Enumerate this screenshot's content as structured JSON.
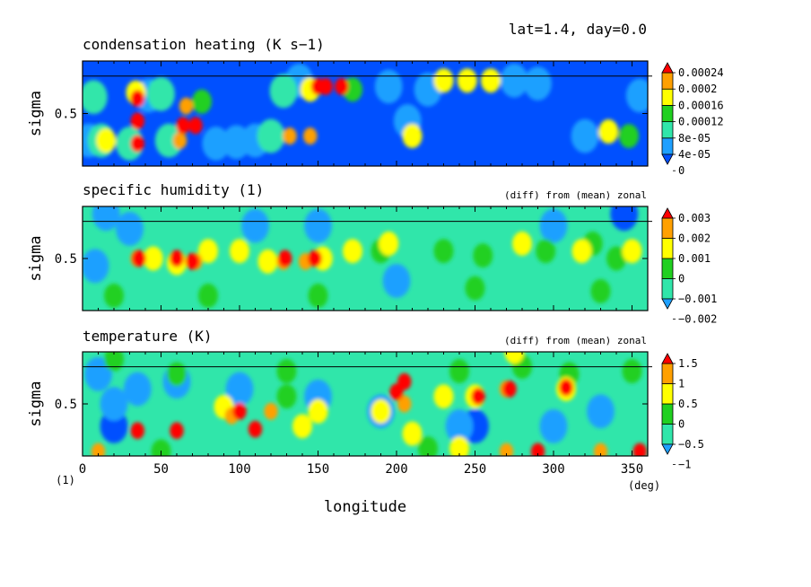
{
  "header": {
    "info": "lat=1.4, day=0.0"
  },
  "colors": {
    "levels": [
      "#0050ff",
      "#1ea0ff",
      "#30e6aa",
      "#20d020",
      "#ffff00",
      "#ffa000",
      "#ff0000"
    ],
    "axis": "#000000"
  },
  "chart_data": [
    {
      "type": "heatmap",
      "title": "condensation heating (K s−1)",
      "annotation": "",
      "xlabel": "",
      "ylabel": "sigma",
      "xlim": [
        0,
        360
      ],
      "ylim": [
        0.85,
        0.15
      ],
      "yticks": [
        "0.5"
      ],
      "legend": {
        "placement": "right",
        "labels": [
          "0.00024",
          "0.0002",
          "0.00016",
          "0.00012",
          "8e-05",
          "4e-05",
          "0"
        ]
      },
      "reference_sigma": 0.75,
      "background_level": 0,
      "features": [
        {
          "lon": 4,
          "sigma": 0.32,
          "level": 1
        },
        {
          "lon": 12,
          "sigma": 0.32,
          "level": 2
        },
        {
          "lon": 15,
          "sigma": 0.32,
          "level": 4
        },
        {
          "lon": 7,
          "sigma": 0.61,
          "level": 2
        },
        {
          "lon": 30,
          "sigma": 0.3,
          "level": 2
        },
        {
          "lon": 35,
          "sigma": 0.3,
          "level": 6
        },
        {
          "lon": 35,
          "sigma": 0.45,
          "level": 6
        },
        {
          "lon": 35,
          "sigma": 0.6,
          "level": 6
        },
        {
          "lon": 34,
          "sigma": 0.64,
          "level": 4
        },
        {
          "lon": 42,
          "sigma": 0.62,
          "level": 1
        },
        {
          "lon": 50,
          "sigma": 0.63,
          "level": 2
        },
        {
          "lon": 55,
          "sigma": 0.32,
          "level": 2
        },
        {
          "lon": 62,
          "sigma": 0.32,
          "level": 5
        },
        {
          "lon": 64,
          "sigma": 0.42,
          "level": 6
        },
        {
          "lon": 72,
          "sigma": 0.42,
          "level": 6
        },
        {
          "lon": 66,
          "sigma": 0.55,
          "level": 5
        },
        {
          "lon": 76,
          "sigma": 0.58,
          "level": 3
        },
        {
          "lon": 85,
          "sigma": 0.3,
          "level": 1
        },
        {
          "lon": 98,
          "sigma": 0.31,
          "level": 1
        },
        {
          "lon": 110,
          "sigma": 0.32,
          "level": 1
        },
        {
          "lon": 120,
          "sigma": 0.35,
          "level": 2
        },
        {
          "lon": 132,
          "sigma": 0.35,
          "level": 5
        },
        {
          "lon": 145,
          "sigma": 0.35,
          "level": 5
        },
        {
          "lon": 128,
          "sigma": 0.65,
          "level": 2
        },
        {
          "lon": 150,
          "sigma": 0.68,
          "level": 6
        },
        {
          "lon": 155,
          "sigma": 0.68,
          "level": 6
        },
        {
          "lon": 145,
          "sigma": 0.66,
          "level": 4
        },
        {
          "lon": 165,
          "sigma": 0.68,
          "level": 6
        },
        {
          "lon": 172,
          "sigma": 0.66,
          "level": 3
        },
        {
          "lon": 138,
          "sigma": 0.72,
          "level": 1
        },
        {
          "lon": 195,
          "sigma": 0.68,
          "level": 1
        },
        {
          "lon": 210,
          "sigma": 0.35,
          "level": 4
        },
        {
          "lon": 207,
          "sigma": 0.45,
          "level": 1
        },
        {
          "lon": 220,
          "sigma": 0.66,
          "level": 1
        },
        {
          "lon": 230,
          "sigma": 0.72,
          "level": 4
        },
        {
          "lon": 245,
          "sigma": 0.72,
          "level": 4
        },
        {
          "lon": 260,
          "sigma": 0.72,
          "level": 4
        },
        {
          "lon": 275,
          "sigma": 0.72,
          "level": 1
        },
        {
          "lon": 290,
          "sigma": 0.7,
          "level": 1
        },
        {
          "lon": 320,
          "sigma": 0.35,
          "level": 1
        },
        {
          "lon": 335,
          "sigma": 0.38,
          "level": 4
        },
        {
          "lon": 348,
          "sigma": 0.35,
          "level": 3
        },
        {
          "lon": 355,
          "sigma": 0.62,
          "level": 1
        }
      ]
    },
    {
      "type": "heatmap",
      "title": "specific humidity (1)",
      "annotation": "(diff) from (mean) zonal",
      "xlabel": "",
      "ylabel": "sigma",
      "xlim": [
        0,
        360
      ],
      "ylim": [
        0.85,
        0.15
      ],
      "yticks": [
        "0.5"
      ],
      "legend": {
        "placement": "right",
        "labels": [
          "0.003",
          "0.002",
          "0.001",
          "0",
          "−0.001",
          "−0.002"
        ]
      },
      "reference_sigma": 0.75,
      "background_level": 2,
      "features": [
        {
          "lon": 20,
          "sigma": 0.25,
          "level": 3
        },
        {
          "lon": 80,
          "sigma": 0.25,
          "level": 3
        },
        {
          "lon": 150,
          "sigma": 0.25,
          "level": 3
        },
        {
          "lon": 250,
          "sigma": 0.3,
          "level": 3
        },
        {
          "lon": 330,
          "sigma": 0.28,
          "level": 3
        },
        {
          "lon": 8,
          "sigma": 0.45,
          "level": 1
        },
        {
          "lon": 30,
          "sigma": 0.7,
          "level": 1
        },
        {
          "lon": 15,
          "sigma": 0.8,
          "level": 1
        },
        {
          "lon": 110,
          "sigma": 0.72,
          "level": 1
        },
        {
          "lon": 150,
          "sigma": 0.72,
          "level": 1
        },
        {
          "lon": 300,
          "sigma": 0.72,
          "level": 1
        },
        {
          "lon": 345,
          "sigma": 0.8,
          "level": 0
        },
        {
          "lon": 200,
          "sigma": 0.35,
          "level": 1
        },
        {
          "lon": 230,
          "sigma": 0.55,
          "level": 3
        },
        {
          "lon": 45,
          "sigma": 0.5,
          "level": 4
        },
        {
          "lon": 35,
          "sigma": 0.5,
          "level": 5
        },
        {
          "lon": 60,
          "sigma": 0.47,
          "level": 4
        },
        {
          "lon": 72,
          "sigma": 0.48,
          "level": 5
        },
        {
          "lon": 80,
          "sigma": 0.55,
          "level": 4
        },
        {
          "lon": 100,
          "sigma": 0.55,
          "level": 4
        },
        {
          "lon": 118,
          "sigma": 0.48,
          "level": 4
        },
        {
          "lon": 128,
          "sigma": 0.48,
          "level": 5
        },
        {
          "lon": 142,
          "sigma": 0.48,
          "level": 5
        },
        {
          "lon": 153,
          "sigma": 0.5,
          "level": 4
        },
        {
          "lon": 172,
          "sigma": 0.55,
          "level": 4
        },
        {
          "lon": 195,
          "sigma": 0.6,
          "level": 4
        },
        {
          "lon": 190,
          "sigma": 0.55,
          "level": 3
        },
        {
          "lon": 255,
          "sigma": 0.52,
          "level": 3
        },
        {
          "lon": 280,
          "sigma": 0.6,
          "level": 4
        },
        {
          "lon": 295,
          "sigma": 0.55,
          "level": 3
        },
        {
          "lon": 318,
          "sigma": 0.55,
          "level": 4
        },
        {
          "lon": 325,
          "sigma": 0.6,
          "level": 3
        },
        {
          "lon": 340,
          "sigma": 0.5,
          "level": 3
        },
        {
          "lon": 350,
          "sigma": 0.55,
          "level": 4
        },
        {
          "lon": 36,
          "sigma": 0.5,
          "level": 6
        },
        {
          "lon": 60,
          "sigma": 0.5,
          "level": 6
        },
        {
          "lon": 70,
          "sigma": 0.48,
          "level": 6
        },
        {
          "lon": 129,
          "sigma": 0.5,
          "level": 6
        },
        {
          "lon": 148,
          "sigma": 0.5,
          "level": 6
        }
      ]
    },
    {
      "type": "heatmap",
      "title": "temperature (K)",
      "annotation": "(diff) from (mean) zonal",
      "xlabel": "longitude",
      "ylabel": "sigma",
      "xlim": [
        0,
        360
      ],
      "ylim": [
        0.85,
        0.15
      ],
      "yticks": [
        "0.5"
      ],
      "xticks": [
        "0",
        "50",
        "100",
        "150",
        "200",
        "250",
        "300",
        "350"
      ],
      "x_unit": "(deg)",
      "corner_label": "(1)",
      "legend": {
        "placement": "right",
        "labels": [
          "1.5",
          "1",
          "0.5",
          "0",
          "−0.5",
          "−1"
        ]
      },
      "reference_sigma": 0.75,
      "background_level": 2,
      "features": [
        {
          "lon": 20,
          "sigma": 0.5,
          "level": 1
        },
        {
          "lon": 35,
          "sigma": 0.6,
          "level": 1
        },
        {
          "lon": 60,
          "sigma": 0.65,
          "level": 1
        },
        {
          "lon": 100,
          "sigma": 0.6,
          "level": 1
        },
        {
          "lon": 150,
          "sigma": 0.55,
          "level": 1
        },
        {
          "lon": 190,
          "sigma": 0.45,
          "level": 1
        },
        {
          "lon": 240,
          "sigma": 0.35,
          "level": 1
        },
        {
          "lon": 300,
          "sigma": 0.35,
          "level": 1
        },
        {
          "lon": 330,
          "sigma": 0.45,
          "level": 1
        },
        {
          "lon": 20,
          "sigma": 0.35,
          "level": 0
        },
        {
          "lon": 250,
          "sigma": 0.35,
          "level": 0
        },
        {
          "lon": 10,
          "sigma": 0.7,
          "level": 1
        },
        {
          "lon": 60,
          "sigma": 0.7,
          "level": 3
        },
        {
          "lon": 130,
          "sigma": 0.72,
          "level": 3
        },
        {
          "lon": 240,
          "sigma": 0.72,
          "level": 3
        },
        {
          "lon": 280,
          "sigma": 0.75,
          "level": 3
        },
        {
          "lon": 310,
          "sigma": 0.7,
          "level": 3
        },
        {
          "lon": 350,
          "sigma": 0.72,
          "level": 3
        },
        {
          "lon": 20,
          "sigma": 0.8,
          "level": 3
        },
        {
          "lon": 275,
          "sigma": 0.85,
          "level": 4
        },
        {
          "lon": 60,
          "sigma": 0.32,
          "level": 6
        },
        {
          "lon": 110,
          "sigma": 0.33,
          "level": 6
        },
        {
          "lon": 140,
          "sigma": 0.35,
          "level": 4
        },
        {
          "lon": 35,
          "sigma": 0.32,
          "level": 6
        },
        {
          "lon": 95,
          "sigma": 0.42,
          "level": 5
        },
        {
          "lon": 100,
          "sigma": 0.45,
          "level": 6
        },
        {
          "lon": 120,
          "sigma": 0.45,
          "level": 5
        },
        {
          "lon": 150,
          "sigma": 0.45,
          "level": 4
        },
        {
          "lon": 90,
          "sigma": 0.48,
          "level": 4
        },
        {
          "lon": 130,
          "sigma": 0.55,
          "level": 3
        },
        {
          "lon": 190,
          "sigma": 0.45,
          "level": 4
        },
        {
          "lon": 205,
          "sigma": 0.5,
          "level": 5
        },
        {
          "lon": 200,
          "sigma": 0.58,
          "level": 6
        },
        {
          "lon": 205,
          "sigma": 0.65,
          "level": 6
        },
        {
          "lon": 210,
          "sigma": 0.3,
          "level": 4
        },
        {
          "lon": 230,
          "sigma": 0.55,
          "level": 4
        },
        {
          "lon": 250,
          "sigma": 0.55,
          "level": 4
        },
        {
          "lon": 252,
          "sigma": 0.55,
          "level": 6
        },
        {
          "lon": 270,
          "sigma": 0.6,
          "level": 5
        },
        {
          "lon": 272,
          "sigma": 0.6,
          "level": 6
        },
        {
          "lon": 308,
          "sigma": 0.6,
          "level": 4
        },
        {
          "lon": 308,
          "sigma": 0.61,
          "level": 6
        },
        {
          "lon": 220,
          "sigma": 0.2,
          "level": 3
        },
        {
          "lon": 240,
          "sigma": 0.2,
          "level": 4
        },
        {
          "lon": 270,
          "sigma": 0.18,
          "level": 5
        },
        {
          "lon": 290,
          "sigma": 0.18,
          "level": 6
        },
        {
          "lon": 330,
          "sigma": 0.18,
          "level": 5
        },
        {
          "lon": 355,
          "sigma": 0.18,
          "level": 6
        },
        {
          "lon": 10,
          "sigma": 0.18,
          "level": 5
        },
        {
          "lon": 50,
          "sigma": 0.18,
          "level": 3
        }
      ]
    }
  ]
}
